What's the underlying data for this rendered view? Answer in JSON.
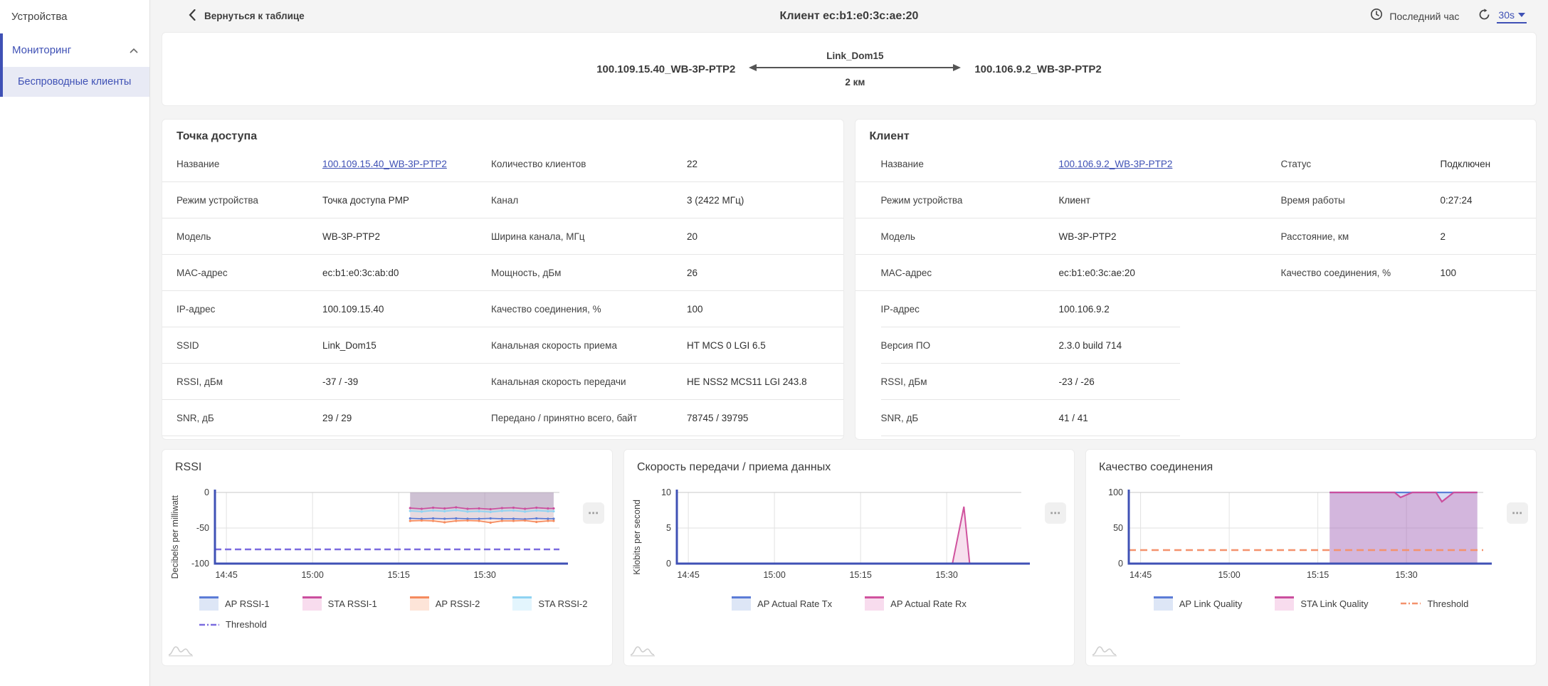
{
  "sidebar": {
    "devices_label": "Устройства",
    "monitoring_label": "Мониторинг",
    "wireless_clients_label": "Беспроводные клиенты"
  },
  "header": {
    "back_label": "Вернуться к таблице",
    "title": "Клиент ec:b1:e0:3c:ae:20",
    "time_range_label": "Последний час",
    "refresh_interval": "30s"
  },
  "topology": {
    "left_device": "100.109.15.40_WB-3P-PTP2",
    "right_device": "100.106.9.2_WB-3P-PTP2",
    "link_name": "Link_Dom15",
    "distance": "2 км"
  },
  "access_point": {
    "title": "Точка доступа",
    "rows": [
      {
        "label1": "Название",
        "value1": "100.109.15.40_WB-3P-PTP2",
        "link1": true,
        "label2": "Количество клиентов",
        "value2": "22"
      },
      {
        "label1": "Режим устройства",
        "value1": "Точка доступа PMP",
        "label2": "Канал",
        "value2": "3 (2422 МГц)"
      },
      {
        "label1": "Модель",
        "value1": "WB-3P-PTP2",
        "label2": "Ширина канала, МГц",
        "value2": "20"
      },
      {
        "label1": "MAC-адрес",
        "value1": "ec:b1:e0:3c:ab:d0",
        "label2": "Мощность, дБм",
        "value2": "26"
      },
      {
        "label1": "IP-адрес",
        "value1": "100.109.15.40",
        "label2": "Качество соединения, %",
        "value2": "100"
      },
      {
        "label1": "SSID",
        "value1": "Link_Dom15",
        "label2": "Канальная скорость приема",
        "value2": "HT MCS 0 LGI 6.5"
      },
      {
        "label1": "RSSI, дБм",
        "value1": "-37 / -39",
        "label2": "Канальная скорость передачи",
        "value2": "HE NSS2 MCS11 LGI 243.8"
      },
      {
        "label1": "SNR, дБ",
        "value1": "29 / 29",
        "label2": "Передано / принятно всего, байт",
        "value2": "78745 / 39795"
      }
    ]
  },
  "client": {
    "title": "Клиент",
    "rows": [
      {
        "label1": "Название",
        "value1": "100.106.9.2_WB-3P-PTP2",
        "link1": true,
        "label2": "Статус",
        "value2": "Подключен"
      },
      {
        "label1": "Режим устройства",
        "value1": "Клиент",
        "label2": "Время работы",
        "value2": "0:27:24"
      },
      {
        "label1": "Модель",
        "value1": "WB-3P-PTP2",
        "label2": "Расстояние, км",
        "value2": "2"
      },
      {
        "label1": "MAC-адрес",
        "value1": "ec:b1:e0:3c:ae:20",
        "label2": "Качество соединения, %",
        "value2": "100"
      },
      {
        "label1": "IP-адрес",
        "value1": "100.106.9.2",
        "label2": "",
        "value2": ""
      },
      {
        "label1": "Версия ПО",
        "value1": "2.3.0 build 714",
        "label2": "",
        "value2": ""
      },
      {
        "label1": "RSSI, дБм",
        "value1": "-23 / -26",
        "label2": "",
        "value2": ""
      },
      {
        "label1": "SNR, дБ",
        "value1": "41 / 41",
        "label2": "",
        "value2": ""
      }
    ]
  },
  "chart_data": [
    {
      "type": "area",
      "title": "RSSI",
      "y_axis_title": "Decibels per milliwatt",
      "x_domain": [
        "14:43",
        "15:43"
      ],
      "x_ticks": [
        "14:45",
        "15:00",
        "15:15",
        "15:30"
      ],
      "y_domain": [
        -100,
        0
      ],
      "y_ticks": [
        0,
        -50,
        -100
      ],
      "baseline": 0,
      "legend_align": "left",
      "series": [
        {
          "name": "STA RSSI-1",
          "color": "#cb4f9e",
          "fill": "rgba(203,79,158,0.18)",
          "markers": true,
          "points": [
            [
              "15:17",
              -22
            ],
            [
              "15:19",
              -23
            ],
            [
              "15:21",
              -21.5
            ],
            [
              "15:23",
              -22.5
            ],
            [
              "15:25",
              -21
            ],
            [
              "15:27",
              -23
            ],
            [
              "15:29",
              -22.5
            ],
            [
              "15:31",
              -23.5
            ],
            [
              "15:33",
              -22
            ],
            [
              "15:35",
              -21.5
            ],
            [
              "15:37",
              -23
            ],
            [
              "15:39",
              -21.5
            ],
            [
              "15:41",
              -22.5
            ],
            [
              "15:42",
              -22.5
            ]
          ]
        },
        {
          "name": "STA RSSI-2",
          "color": "#8fd3f2",
          "fill": "rgba(143,211,242,0.25)",
          "markers": true,
          "points": [
            [
              "15:17",
              -26
            ],
            [
              "15:19",
              -27
            ],
            [
              "15:21",
              -25.5
            ],
            [
              "15:23",
              -26.5
            ],
            [
              "15:25",
              -25
            ],
            [
              "15:27",
              -27
            ],
            [
              "15:29",
              -26.5
            ],
            [
              "15:31",
              -27.5
            ],
            [
              "15:33",
              -26
            ],
            [
              "15:35",
              -25.5
            ],
            [
              "15:37",
              -27
            ],
            [
              "15:39",
              -25.5
            ],
            [
              "15:41",
              -26.5
            ],
            [
              "15:42",
              -26.5
            ]
          ]
        },
        {
          "name": "AP RSSI-1",
          "color": "#5c7cd6",
          "fill": "rgba(92,124,214,0.16)",
          "markers": true,
          "points": [
            [
              "15:17",
              -36.5
            ],
            [
              "15:19",
              -37
            ],
            [
              "15:21",
              -36.5
            ],
            [
              "15:23",
              -37
            ],
            [
              "15:25",
              -36.5
            ],
            [
              "15:27",
              -37
            ],
            [
              "15:29",
              -37
            ],
            [
              "15:31",
              -36.5
            ],
            [
              "15:33",
              -37
            ],
            [
              "15:35",
              -37
            ],
            [
              "15:37",
              -37.5
            ],
            [
              "15:39",
              -36.5
            ],
            [
              "15:41",
              -37
            ],
            [
              "15:42",
              -37
            ]
          ]
        },
        {
          "name": "AP RSSI-2",
          "color": "#f58b5e",
          "fill": "rgba(245,139,94,0.16)",
          "markers": true,
          "points": [
            [
              "15:17",
              -40
            ],
            [
              "15:19",
              -39.5
            ],
            [
              "15:21",
              -40
            ],
            [
              "15:23",
              -42
            ],
            [
              "15:25",
              -40
            ],
            [
              "15:27",
              -39.5
            ],
            [
              "15:29",
              -40
            ],
            [
              "15:31",
              -42.5
            ],
            [
              "15:33",
              -40
            ],
            [
              "15:35",
              -40
            ],
            [
              "15:37",
              -39.5
            ],
            [
              "15:39",
              -41.5
            ],
            [
              "15:41",
              -40
            ],
            [
              "15:42",
              -40
            ]
          ]
        },
        {
          "name": "Threshold",
          "color": "#7b6cdf",
          "dash": "9 5",
          "width": 2.4,
          "points": [
            [
              "14:43",
              -80
            ],
            [
              "15:43",
              -80
            ]
          ]
        }
      ],
      "legend_rows": [
        [
          {
            "label": "AP RSSI-1",
            "color": "#5c7cd6",
            "bg": "#dde6f6"
          },
          {
            "label": "STA RSSI-1",
            "color": "#cb4f9e",
            "bg": "#f8dcee"
          },
          {
            "label": "AP RSSI-2",
            "color": "#f58b5e",
            "bg": "#fde4d8"
          },
          {
            "label": "STA RSSI-2",
            "color": "#8fd3f2",
            "bg": "#e3f5fd"
          }
        ],
        [
          {
            "label": "Threshold",
            "dash": true,
            "color": "#7b6cdf"
          }
        ]
      ]
    },
    {
      "type": "area",
      "title": "Скорость передачи / приема данных",
      "y_axis_title": "Kilobits per second",
      "x_domain": [
        "14:43",
        "15:43"
      ],
      "x_ticks": [
        "14:45",
        "15:00",
        "15:15",
        "15:30"
      ],
      "y_domain": [
        0,
        10
      ],
      "y_ticks": [
        10,
        5,
        0
      ],
      "baseline": 0,
      "legend_align": "center",
      "series": [
        {
          "name": "AP Actual Rate Tx",
          "color": "#5c7cd6",
          "fill": "rgba(92,124,214,0.15)",
          "width": 2.2,
          "points": [
            [
              "14:43",
              0
            ],
            [
              "15:43",
              0
            ]
          ]
        },
        {
          "name": "AP Actual Rate Rx",
          "color": "#d0539e",
          "fill": "rgba(208,83,158,0.18)",
          "width": 2,
          "points": [
            [
              "14:43",
              0
            ],
            [
              "15:31",
              0
            ],
            [
              "15:33",
              8
            ],
            [
              "15:34",
              0
            ],
            [
              "15:43",
              0
            ]
          ]
        }
      ],
      "legend_rows": [
        [
          {
            "label": "AP Actual Rate Tx",
            "color": "#5c7cd6",
            "bg": "#dde6f6"
          },
          {
            "label": "AP Actual Rate Rx",
            "color": "#d0539e",
            "bg": "#f8dcee"
          }
        ]
      ]
    },
    {
      "type": "area",
      "title": "Качество соединения",
      "y_axis_title": "",
      "x_domain": [
        "14:43",
        "15:43"
      ],
      "x_ticks": [
        "14:45",
        "15:00",
        "15:15",
        "15:30"
      ],
      "y_domain": [
        0,
        100
      ],
      "y_ticks": [
        100,
        50,
        0
      ],
      "baseline": 0,
      "legend_align": "center",
      "series": [
        {
          "name": "AP Link Quality",
          "color": "#5c7cd6",
          "fill": "rgba(92,124,214,0.25)",
          "width": 2.2,
          "points": [
            [
              "15:17",
              100
            ],
            [
              "15:42",
              100
            ]
          ]
        },
        {
          "name": "STA Link Quality",
          "color": "#cb4f9e",
          "fill": "rgba(203,79,158,0.28)",
          "width": 2.2,
          "points": [
            [
              "15:17",
              100
            ],
            [
              "15:28",
              100
            ],
            [
              "15:29",
              93
            ],
            [
              "15:31",
              100
            ],
            [
              "15:35",
              100
            ],
            [
              "15:36",
              87
            ],
            [
              "15:38",
              100
            ],
            [
              "15:42",
              100
            ]
          ]
        },
        {
          "name": "Threshold",
          "color": "#f4926d",
          "dash": "10 6",
          "width": 2.4,
          "points": [
            [
              "14:43",
              19
            ],
            [
              "15:43",
              19
            ]
          ]
        }
      ],
      "legend_rows": [
        [
          {
            "label": "AP Link Quality",
            "color": "#5c7cd6",
            "bg": "#dde6f6"
          },
          {
            "label": "STA Link Quality",
            "color": "#cb4f9e",
            "bg": "#f8dcee"
          },
          {
            "label": "Threshold",
            "dash": true,
            "color": "#f4926d"
          }
        ]
      ]
    }
  ]
}
